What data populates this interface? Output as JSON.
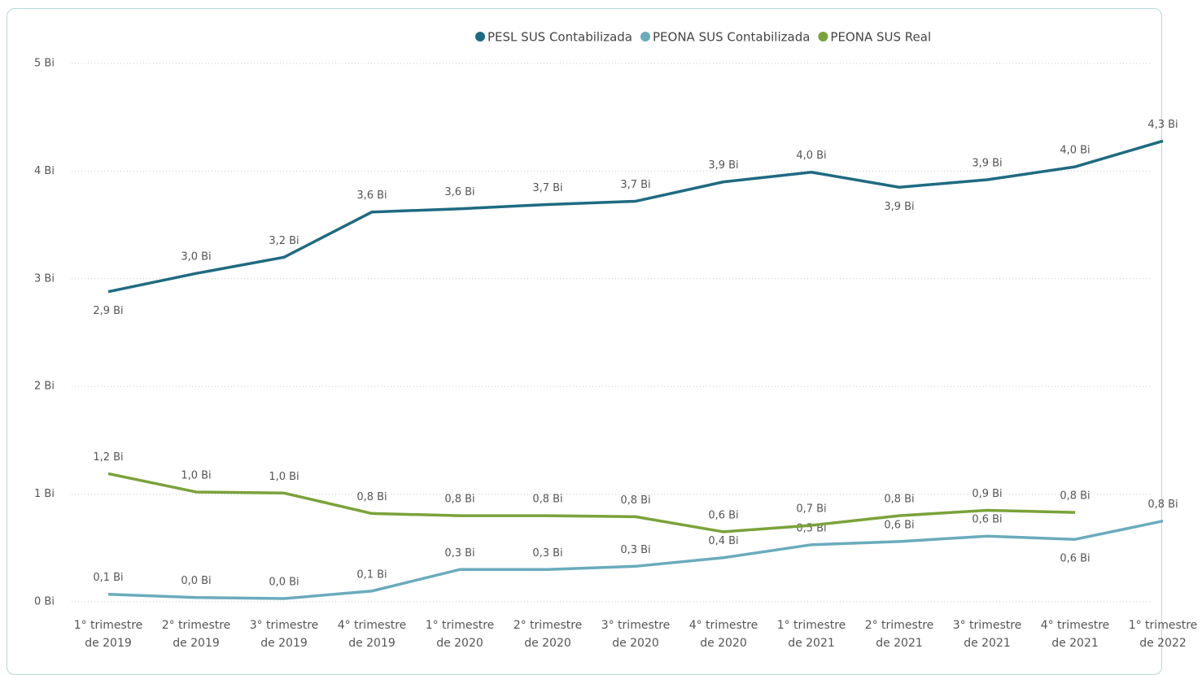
{
  "chart_data": {
    "type": "line",
    "categories": [
      "1° trimestre de 2019",
      "2° trimestre de 2019",
      "3° trimestre de 2019",
      "4° trimestre de 2019",
      "1° trimestre de 2020",
      "2° trimestre de 2020",
      "3° trimestre de 2020",
      "4° trimestre de 2020",
      "1° trimestre de 2021",
      "2° trimestre de 2021",
      "3° trimestre de 2021",
      "4° trimestre de 2021",
      "1° trimestre de 2022"
    ],
    "series": [
      {
        "name": "PESL SUS Contabilizada",
        "color": "#1e6b82",
        "values": [
          2.88,
          3.05,
          3.2,
          3.62,
          3.65,
          3.69,
          3.72,
          3.9,
          3.99,
          3.85,
          3.92,
          4.04,
          4.28
        ],
        "value_labels": [
          "2,9 Bi",
          "3,0 Bi",
          "3,2 Bi",
          "3,6 Bi",
          "3,6 Bi",
          "3,7 Bi",
          "3,7 Bi",
          "3,9 Bi",
          "4,0 Bi",
          "3,9 Bi",
          "3,9 Bi",
          "4,0 Bi",
          "4,3 Bi"
        ]
      },
      {
        "name": "PEONA SUS Contabilizada",
        "color": "#6aabbd",
        "values": [
          0.07,
          0.04,
          0.03,
          0.1,
          0.3,
          0.3,
          0.33,
          0.41,
          0.53,
          0.56,
          0.61,
          0.58,
          0.75
        ],
        "value_labels": [
          "0,1 Bi",
          "0,0 Bi",
          "0,0 Bi",
          "0,1 Bi",
          "0,3 Bi",
          "0,3 Bi",
          "0,3 Bi",
          "0,4 Bi",
          "0,5 Bi",
          "0,6 Bi",
          "0,6 Bi",
          "0,6 Bi",
          "0,8 Bi"
        ]
      },
      {
        "name": "PEONA SUS Real",
        "color": "#7aa23a",
        "values": [
          1.19,
          1.02,
          1.01,
          0.82,
          0.8,
          0.8,
          0.79,
          0.65,
          0.71,
          0.8,
          0.85,
          0.83,
          null
        ],
        "value_labels": [
          "1,2 Bi",
          "1,0 Bi",
          "1,0 Bi",
          "0,8 Bi",
          "0,8 Bi",
          "0,8 Bi",
          "0,8 Bi",
          "0,6 Bi",
          "0,7 Bi",
          "0,8 Bi",
          "0,9 Bi",
          "0,8 Bi",
          null
        ]
      }
    ],
    "ylim": [
      0,
      5
    ],
    "yticks": [
      {
        "value": 0,
        "label": "0 Bi"
      },
      {
        "value": 1,
        "label": "1 Bi"
      },
      {
        "value": 2,
        "label": "2 Bi"
      },
      {
        "value": 3,
        "label": "3 Bi"
      },
      {
        "value": 4,
        "label": "4 Bi"
      },
      {
        "value": 5,
        "label": "5 Bi"
      }
    ],
    "grid": true,
    "legend": "top"
  }
}
